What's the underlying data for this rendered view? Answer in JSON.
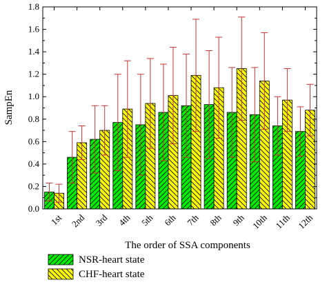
{
  "chart_data": {
    "type": "bar",
    "title": "",
    "xlabel": "The order of SSA components",
    "ylabel": "SampEn",
    "ylim": [
      0,
      1.8
    ],
    "yticks": [
      0,
      0.2,
      0.4,
      0.6,
      0.8,
      1.0,
      1.2,
      1.4,
      1.6,
      1.8
    ],
    "ytick_labels": [
      "0.0",
      "0.2",
      "0.4",
      "0.6",
      "0.8",
      "1.0",
      "1.2",
      "1.4",
      "1.6",
      "1.8"
    ],
    "categories": [
      "1st",
      "2nd",
      "3rd",
      "4th",
      "5th",
      "6th",
      "7th",
      "8th",
      "9th",
      "10th",
      "11th",
      "12th"
    ],
    "grid": false,
    "legend_position": "bottom-left, below axis",
    "series": [
      {
        "name": "NSR-heart state",
        "color": "#00ee00",
        "hatch": "forward-diagonal",
        "values": [
          0.15,
          0.46,
          0.62,
          0.77,
          0.75,
          0.86,
          0.92,
          0.93,
          0.86,
          0.84,
          0.74,
          0.69
        ],
        "error": [
          0.08,
          0.23,
          0.3,
          0.43,
          0.45,
          0.43,
          0.46,
          0.48,
          0.4,
          0.42,
          0.26,
          0.22
        ]
      },
      {
        "name": "CHF-heart state",
        "color": "#ffff00",
        "hatch": "back-diagonal",
        "values": [
          0.14,
          0.59,
          0.7,
          0.89,
          0.94,
          1.01,
          1.19,
          1.08,
          1.25,
          1.14,
          0.97,
          0.88
        ],
        "error": [
          0.08,
          0.15,
          0.22,
          0.43,
          0.4,
          0.43,
          0.5,
          0.45,
          0.46,
          0.43,
          0.28,
          0.23
        ]
      }
    ],
    "errorbar_color": "#cc3333"
  }
}
